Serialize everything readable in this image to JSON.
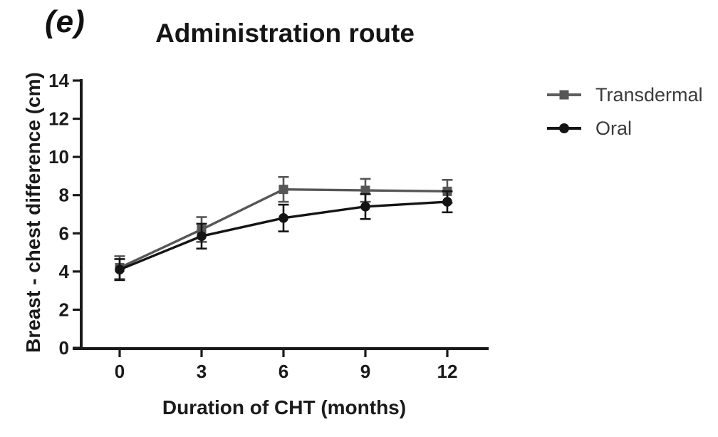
{
  "panel_label": "(e)",
  "title": "Administration route",
  "legend": {
    "items": [
      {
        "label": "Transdermal",
        "marker": "square",
        "color": "#565656",
        "line_color": "#5e5e5e"
      },
      {
        "label": "Oral",
        "marker": "circle",
        "color": "#141414",
        "line_color": "#141414"
      }
    ]
  },
  "chart_data": {
    "type": "line",
    "title": "Administration route",
    "xlabel": "Duration of CHT (months)",
    "ylabel": "Breast - chest difference (cm)",
    "x": [
      0,
      3,
      6,
      9,
      12
    ],
    "xticks": [
      "0",
      "3",
      "6",
      "9",
      "12"
    ],
    "yticks": [
      "0",
      "2",
      "4",
      "6",
      "8",
      "10",
      "12",
      "14"
    ],
    "ytick_values": [
      0,
      2,
      4,
      6,
      8,
      10,
      12,
      14
    ],
    "xlim": [
      0,
      12
    ],
    "ylim": [
      0,
      14
    ],
    "grid": false,
    "error_bars": true,
    "legend_position": "right",
    "series": [
      {
        "name": "Transdermal",
        "marker": "square",
        "color": "#565656",
        "values": [
          4.2,
          6.2,
          8.3,
          8.25,
          8.2
        ],
        "errors": [
          0.6,
          0.65,
          0.65,
          0.6,
          0.6
        ]
      },
      {
        "name": "Oral",
        "marker": "circle",
        "color": "#141414",
        "values": [
          4.1,
          5.85,
          6.8,
          7.4,
          7.65
        ],
        "errors": [
          0.55,
          0.65,
          0.7,
          0.65,
          0.55
        ]
      }
    ]
  }
}
